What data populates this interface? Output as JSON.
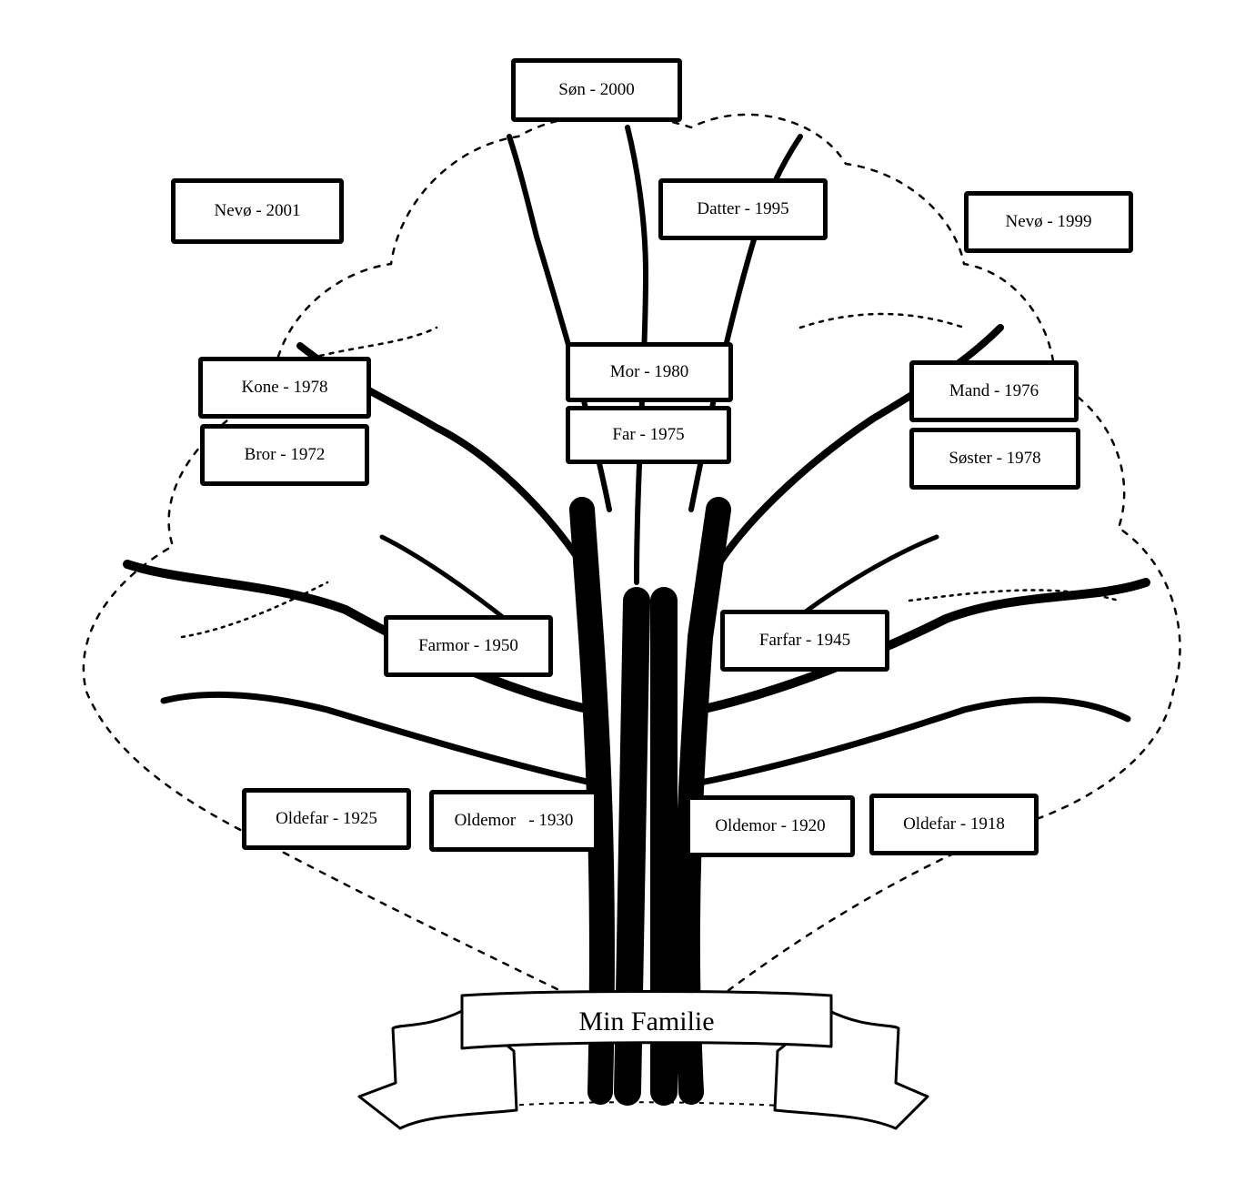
{
  "title": "Min Familie",
  "members": {
    "son": "Søn - 2000",
    "nephew_left": "Nevø - 2001",
    "daughter": "Datter - 1995",
    "nephew_right": "Nevø - 1999",
    "wife": "Kone - 1978",
    "brother": "Bror - 1972",
    "mother": "Mor - 1980",
    "father": "Far - 1975",
    "husband": "Mand - 1976",
    "sister": "Søster - 1978",
    "paternal_grandmother": "Farmor - 1950",
    "paternal_grandfather": "Farfar - 1945",
    "great_grandfather_1": "Oldefar - 1925",
    "great_grandmother_1": "Oldemor   - 1930",
    "great_grandmother_2": "Oldemor - 1920",
    "great_grandfather_2": "Oldefar - 1918"
  },
  "colors": {
    "ink": "#000000",
    "paper": "#ffffff"
  }
}
